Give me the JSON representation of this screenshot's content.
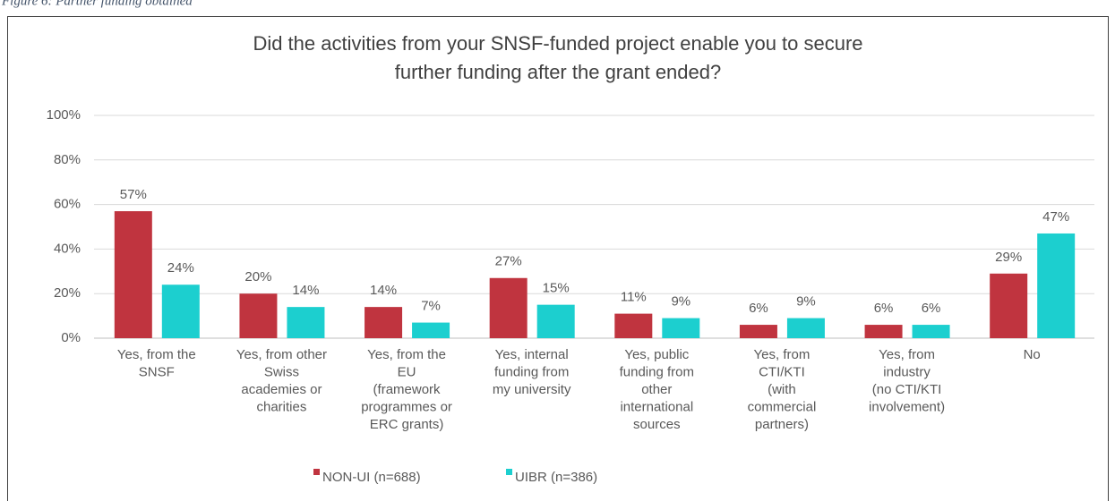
{
  "caption": "Figure 6: Partner funding obtained",
  "chart_data": {
    "type": "bar",
    "title": [
      "Did the activities from your SNSF-funded project enable you to secure",
      "further funding after the grant ended?"
    ],
    "categories": [
      [
        "Yes, from the",
        "SNSF"
      ],
      [
        "Yes, from other",
        "Swiss",
        "academies or",
        "charities"
      ],
      [
        "Yes, from the",
        "EU",
        "(framework",
        "programmes or",
        "ERC grants)"
      ],
      [
        "Yes, internal",
        "funding from",
        "my university"
      ],
      [
        "Yes, public",
        "funding from",
        "other",
        "international",
        "sources"
      ],
      [
        "Yes, from",
        "CTI/KTI",
        "(with",
        "commercial",
        "partners)"
      ],
      [
        "Yes, from",
        "industry",
        "(no CTI/KTI",
        "involvement)"
      ],
      [
        "No"
      ]
    ],
    "series": [
      {
        "name": "NON-UI (n=688)",
        "color": "#c0343f",
        "values": [
          57,
          20,
          14,
          27,
          11,
          6,
          6,
          29
        ],
        "value_labels": [
          "57%",
          "20%",
          "14%",
          "27%",
          "11%",
          "6%",
          "6%",
          "29%"
        ]
      },
      {
        "name": "UIBR (n=386)",
        "color": "#1ccfcf",
        "values": [
          24,
          14,
          7,
          15,
          9,
          9,
          6,
          47
        ],
        "value_labels": [
          "24%",
          "14%",
          "7%",
          "15%",
          "9%",
          "9%",
          "6%",
          "47%"
        ]
      }
    ],
    "ylim": [
      0,
      100
    ],
    "yticks": [
      {
        "value": 0,
        "label": "0%"
      },
      {
        "value": 20,
        "label": "20%"
      },
      {
        "value": 40,
        "label": "40%"
      },
      {
        "value": 60,
        "label": "60%"
      },
      {
        "value": 80,
        "label": "80%"
      },
      {
        "value": 100,
        "label": "100%"
      }
    ],
    "grid": true,
    "legend": "bottom"
  }
}
